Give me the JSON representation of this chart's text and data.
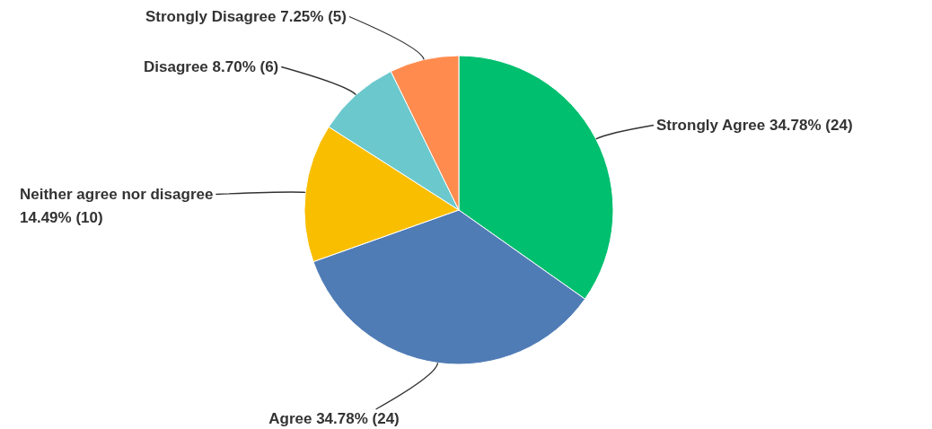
{
  "chart_data": {
    "type": "pie",
    "categories": [
      "Strongly Agree",
      "Agree",
      "Neither agree nor disagree",
      "Disagree",
      "Strongly Disagree"
    ],
    "values": [
      24,
      24,
      10,
      6,
      5
    ],
    "value_labels": [
      "34.78% (24)",
      "34.78% (24)",
      "14.49% (10)",
      "8.70% (6)",
      "7.25% (5)"
    ],
    "colors": [
      "#00bf6f",
      "#507cb6",
      "#f9be00",
      "#6bc8cd",
      "#ff8b4f"
    ]
  }
}
